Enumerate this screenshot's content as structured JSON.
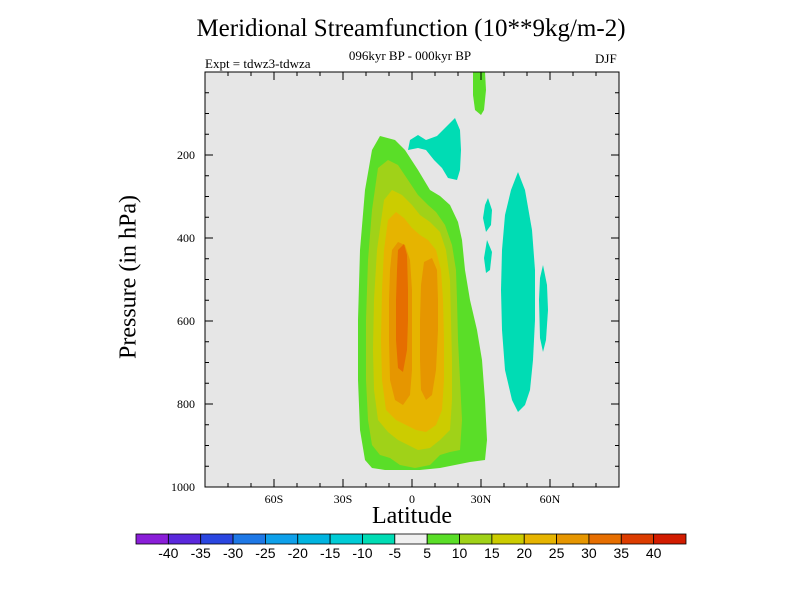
{
  "chart_data": {
    "type": "contour",
    "title": "Meridional Streamfunction (10**9kg/m-2)",
    "subtitle": "096kyr BP - 000kyr BP",
    "experiment": "Expt = tdwz3-tdwza",
    "season": "DJF",
    "xlabel": "Latitude",
    "ylabel": "Pressure (in hPa)",
    "xlim": [
      -90,
      90
    ],
    "ylim": [
      1000,
      0
    ],
    "x_ticks": [
      {
        "value": -60,
        "label": "60S"
      },
      {
        "value": -30,
        "label": "30S"
      },
      {
        "value": 0,
        "label": "0"
      },
      {
        "value": 30,
        "label": "30N"
      },
      {
        "value": 60,
        "label": "60N"
      }
    ],
    "y_ticks": [
      {
        "value": 200,
        "label": "200"
      },
      {
        "value": 400,
        "label": "400"
      },
      {
        "value": 600,
        "label": "600"
      },
      {
        "value": 800,
        "label": "800"
      },
      {
        "value": 1000,
        "label": "1000"
      }
    ],
    "colorbar": {
      "levels": [
        -40,
        -35,
        -30,
        -25,
        -20,
        -15,
        -10,
        -5,
        5,
        10,
        15,
        20,
        25,
        30,
        35,
        40
      ],
      "colors": [
        "#8a1ed8",
        "#5a28dc",
        "#2a46e0",
        "#1e78e6",
        "#0ea0ea",
        "#00b4e0",
        "#00ccd6",
        "#00dcb4",
        "#f0f0f0",
        "#5ade28",
        "#a0d218",
        "#cccc00",
        "#e6b400",
        "#e69600",
        "#e66e00",
        "#dc3c00",
        "#d21c00"
      ]
    },
    "regions": [
      {
        "band": "10 to 15",
        "lat_range": [
          -22,
          32
        ],
        "p_range": [
          40,
          960
        ]
      },
      {
        "band": "15 to 20",
        "lat_range": [
          -19,
          20
        ],
        "p_range": [
          180,
          930
        ]
      },
      {
        "band": "20 to 25",
        "lat_range": [
          -16,
          17
        ],
        "p_range": [
          260,
          900
        ]
      },
      {
        "band": "25 to 30",
        "lat_range": [
          -14,
          15
        ],
        "p_range": [
          320,
          850
        ]
      },
      {
        "band": "30 to 35",
        "lat_range": [
          -10,
          -2
        ],
        "p_range": [
          400,
          780
        ]
      },
      {
        "band": "-10 to -5",
        "lat_range": [
          0,
          22
        ],
        "p_range": [
          100,
          300
        ]
      },
      {
        "band": "-10 to -5",
        "lat_range": [
          40,
          53
        ],
        "p_range": [
          240,
          840
        ]
      },
      {
        "band": "-10 to -5",
        "lat_range": [
          58,
          60
        ],
        "p_range": [
          480,
          690
        ]
      }
    ]
  }
}
